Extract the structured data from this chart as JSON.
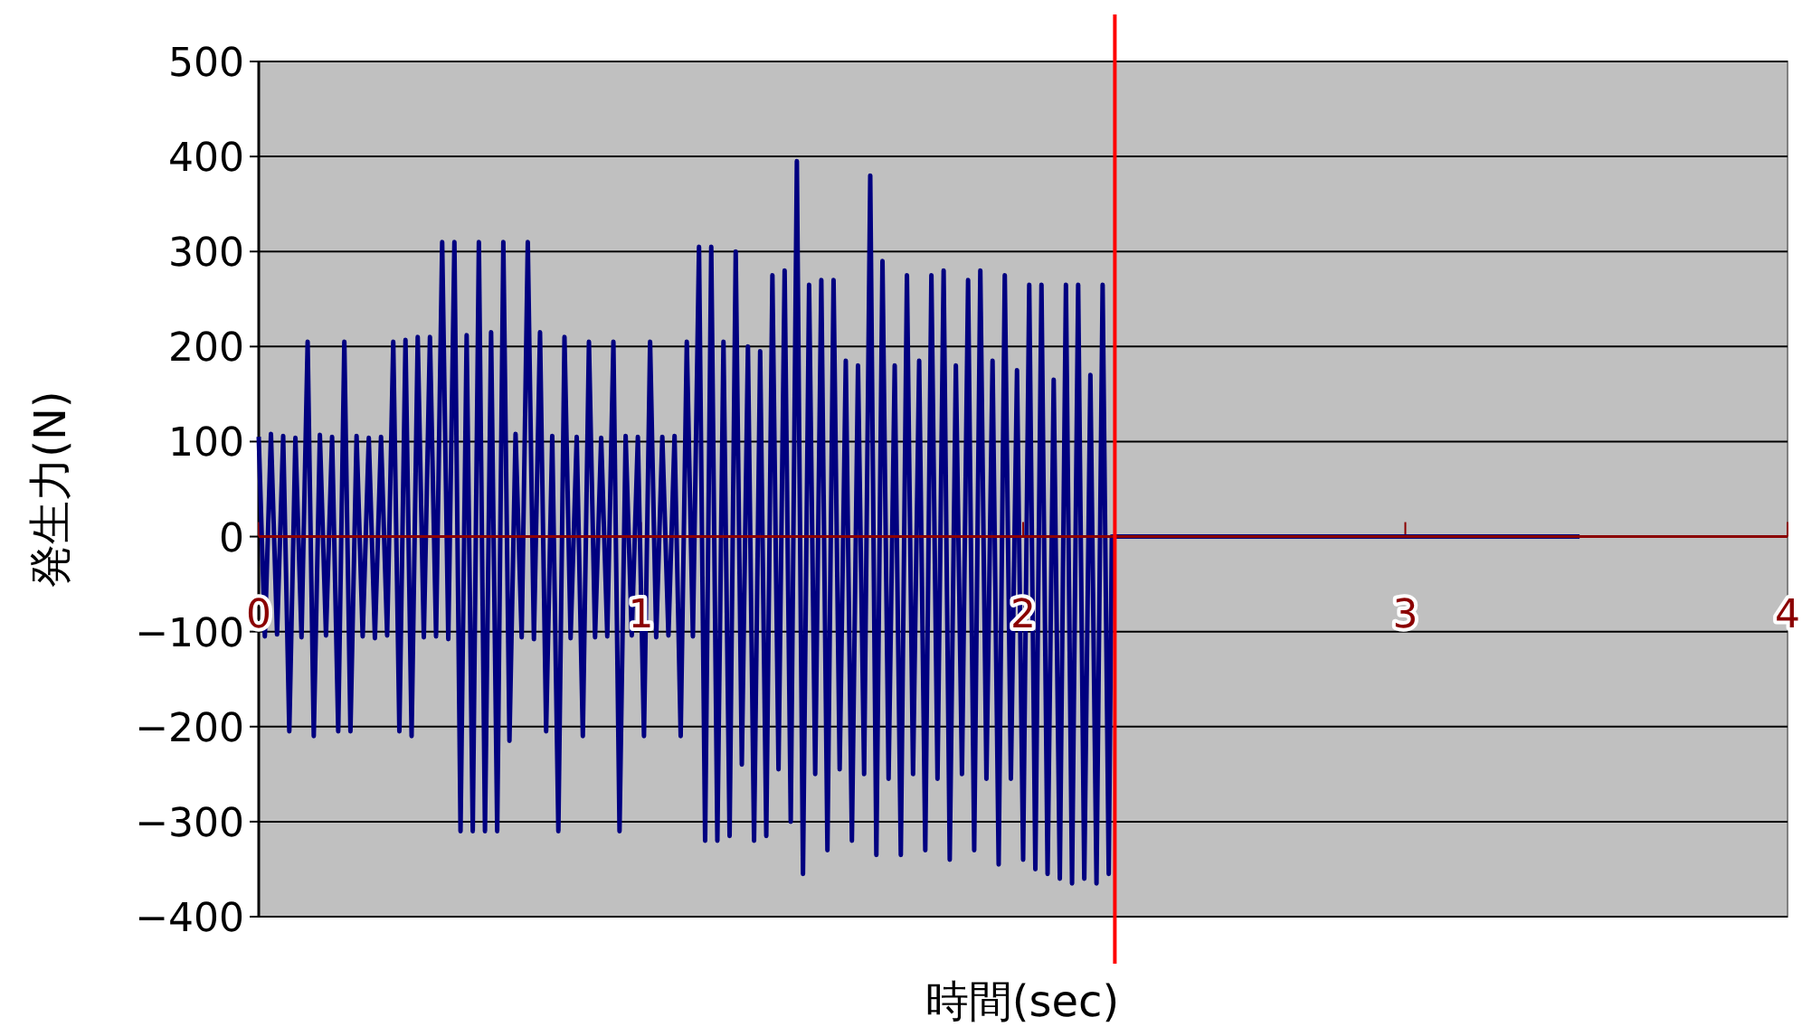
{
  "chart_data": {
    "type": "line",
    "xlabel": "時間(sec)",
    "ylabel": "発生力(N)",
    "xlim": [
      0,
      4
    ],
    "xticks": [
      0,
      1,
      2,
      3,
      4
    ],
    "ylim": [
      -400,
      500
    ],
    "yticks": [
      -400,
      -300,
      -200,
      -100,
      0,
      100,
      200,
      300,
      400,
      500
    ],
    "grid": "y",
    "line_style": "solid",
    "ref_lines": [
      {
        "axis": "x",
        "value": 2.24,
        "color": "#ff0000"
      }
    ],
    "series": [
      {
        "color": "#000080",
        "x": [
          0,
          0.016,
          0.032,
          0.048,
          0.064,
          0.08,
          0.096,
          0.112,
          0.128,
          0.144,
          0.16,
          0.176,
          0.192,
          0.208,
          0.224,
          0.24,
          0.256,
          0.272,
          0.288,
          0.304,
          0.32,
          0.336,
          0.352,
          0.368,
          0.384,
          0.4,
          0.416,
          0.432,
          0.448,
          0.464,
          0.48,
          0.496,
          0.512,
          0.528,
          0.544,
          0.56,
          0.576,
          0.592,
          0.608,
          0.624,
          0.64,
          0.656,
          0.672,
          0.688,
          0.704,
          0.72,
          0.736,
          0.752,
          0.768,
          0.784,
          0.8,
          0.816,
          0.832,
          0.848,
          0.864,
          0.88,
          0.896,
          0.912,
          0.928,
          0.944,
          0.96,
          0.976,
          0.992,
          1.008,
          1.024,
          1.04,
          1.056,
          1.072,
          1.088,
          1.104,
          1.12,
          1.136,
          1.152,
          1.168,
          1.184,
          1.2,
          1.216,
          1.232,
          1.248,
          1.264,
          1.28,
          1.296,
          1.312,
          1.328,
          1.344,
          1.36,
          1.376,
          1.392,
          1.408,
          1.424,
          1.44,
          1.456,
          1.472,
          1.488,
          1.504,
          1.52,
          1.536,
          1.552,
          1.568,
          1.584,
          1.6,
          1.616,
          1.632,
          1.648,
          1.664,
          1.68,
          1.696,
          1.712,
          1.728,
          1.744,
          1.76,
          1.776,
          1.792,
          1.808,
          1.824,
          1.84,
          1.856,
          1.872,
          1.888,
          1.904,
          1.92,
          1.936,
          1.952,
          1.968,
          1.984,
          2.0,
          2.016,
          2.032,
          2.048,
          2.064,
          2.08,
          2.096,
          2.112,
          2.128,
          2.144,
          2.16,
          2.176,
          2.192,
          2.208,
          2.224,
          2.232,
          3.456
        ],
        "values": [
          105,
          -105,
          108,
          -103,
          106,
          -205,
          104,
          -106,
          205,
          -210,
          107,
          -104,
          105,
          -205,
          205,
          -205,
          106,
          -105,
          104,
          -107,
          105,
          -104,
          205,
          -205,
          207,
          -210,
          210,
          -106,
          210,
          -105,
          310,
          -108,
          310,
          -310,
          212,
          -310,
          310,
          -310,
          215,
          -310,
          310,
          -215,
          108,
          -106,
          310,
          -108,
          215,
          -205,
          106,
          -310,
          210,
          -107,
          105,
          -210,
          205,
          -106,
          104,
          -105,
          205,
          -310,
          106,
          -104,
          105,
          -210,
          205,
          -106,
          105,
          -104,
          106,
          -210,
          205,
          -105,
          305,
          -320,
          305,
          -320,
          205,
          -315,
          300,
          -240,
          200,
          -320,
          195,
          -315,
          275,
          -245,
          280,
          -300,
          395,
          -355,
          265,
          -250,
          270,
          -330,
          270,
          -245,
          185,
          -320,
          180,
          -250,
          380,
          -335,
          290,
          -255,
          180,
          -335,
          275,
          -250,
          185,
          -330,
          275,
          -255,
          280,
          -340,
          180,
          -250,
          270,
          -330,
          280,
          -255,
          185,
          -345,
          275,
          -255,
          175,
          -340,
          265,
          -350,
          265,
          -355,
          165,
          -360,
          265,
          -365,
          265,
          -360,
          170,
          -365,
          265,
          -355,
          0,
          0
        ]
      }
    ]
  }
}
